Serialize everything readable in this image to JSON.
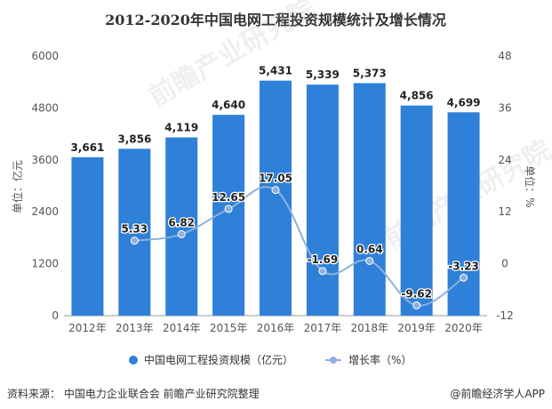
{
  "chart_data": {
    "type": "bar+line",
    "title": "2012-2020年中国电网工程投资规模统计及增长情况",
    "categories": [
      "2012年",
      "2013年",
      "2014年",
      "2015年",
      "2016年",
      "2017年",
      "2018年",
      "2019年",
      "2020年"
    ],
    "series": [
      {
        "name": "中国电网工程投资规模（亿元）",
        "type": "bar",
        "axis": "left",
        "color": "#2e80d8",
        "values": [
          3661,
          3856,
          4119,
          4640,
          5431,
          5339,
          5373,
          4856,
          4699
        ],
        "value_labels": [
          "3,661",
          "3,856",
          "4,119",
          "4,640",
          "5,431",
          "5,339",
          "5,373",
          "4,856",
          "4,699"
        ]
      },
      {
        "name": "增长率（%）",
        "type": "line",
        "axis": "right",
        "color": "#8fb0dc",
        "values": [
          null,
          5.33,
          6.82,
          12.65,
          17.05,
          -1.69,
          0.64,
          -9.62,
          -3.23
        ],
        "value_labels": [
          "",
          "5.33",
          "6.82",
          "12.65",
          "17.05",
          "-1.69",
          "0.64",
          "-9.62",
          "-3.23"
        ]
      }
    ],
    "y_left": {
      "label": "单位：亿元",
      "min": 0,
      "max": 6000,
      "ticks": [
        "0",
        "1200",
        "2400",
        "3600",
        "4800",
        "6000"
      ]
    },
    "y_right": {
      "label": "单位：%",
      "min": -12,
      "max": 48,
      "ticks": [
        "-12",
        "0",
        "12",
        "24",
        "36",
        "48"
      ]
    },
    "legend_position": "bottom"
  },
  "footer": {
    "source": "资料来源：  中国电力企业联合会 前瞻产业研究院整理",
    "brand": "@前瞻经济学人APP"
  },
  "watermark": "前瞻产业研究院"
}
